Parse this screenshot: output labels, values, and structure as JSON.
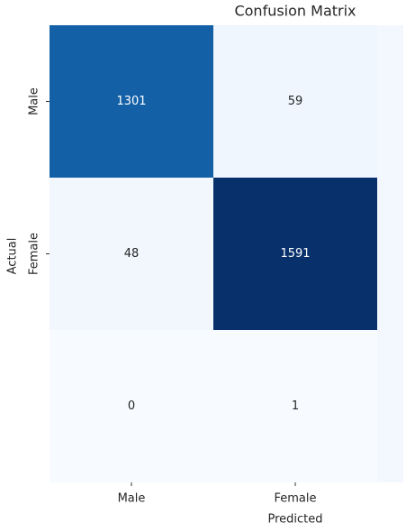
{
  "chart_data": {
    "type": "heatmap",
    "title": "Confusion Matrix",
    "xlabel": "Predicted",
    "ylabel": "Actual",
    "x_categories": [
      "Male",
      "Female"
    ],
    "y_categories": [
      "Male",
      "Female",
      null
    ],
    "values": [
      [
        1301,
        59
      ],
      [
        48,
        1591
      ],
      [
        0,
        1
      ]
    ],
    "colormap": "Blues"
  }
}
